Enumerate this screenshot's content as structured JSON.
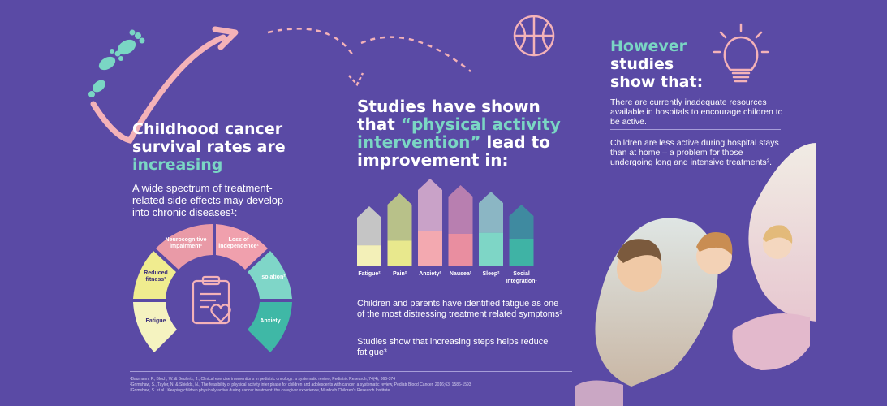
{
  "left": {
    "heading_line1": "Childhood cancer",
    "heading_line2": "survival rates are",
    "heading_accent": "increasing",
    "body": "A wide spectrum of treatment-related side effects may develop into chronic diseases¹:",
    "segments": [
      {
        "label_l1": "Neurocognitive",
        "label_l2": "impairment²",
        "color": "#e99aa7"
      },
      {
        "label_l1": "Loss of",
        "label_l2": "independence²",
        "color": "#f0a0ad"
      },
      {
        "label_l1": "Isolation²",
        "label_l2": "",
        "color": "#7fd6c8"
      },
      {
        "label_l1": "Anxiety",
        "label_l2": "",
        "color": "#3fb8a6"
      },
      {
        "label_l1": "Fatigue",
        "label_l2": "",
        "color": "#f5f3c0"
      },
      {
        "label_l1": "Reduced",
        "label_l2": "fitness²",
        "color": "#f0ec8f"
      }
    ]
  },
  "middle": {
    "heading_line1": "Studies have shown",
    "heading_line2_pre": "that ",
    "heading_accent1": "“physical activity",
    "heading_accent2": "intervention”",
    "heading_line3_post": " lead to",
    "heading_line4": "improvement in:",
    "bars": [
      {
        "label": "Fatigue²",
        "label2": "",
        "level": 0.35,
        "top": "#c5c5c5",
        "bottom": "#f3f0b8"
      },
      {
        "label": "Pain²",
        "label2": "",
        "level": 0.35,
        "top": "#b8c189",
        "bottom": "#e8e88d"
      },
      {
        "label": "Anxiety²",
        "label2": "",
        "level": 0.4,
        "top": "#c9a2c8",
        "bottom": "#f3a9b0"
      },
      {
        "label": "Nausea²",
        "label2": "",
        "level": 0.4,
        "top": "#b87fb0",
        "bottom": "#e98ea0"
      },
      {
        "label": "Sleep²",
        "label2": "",
        "level": 0.45,
        "top": "#8bb6c4",
        "bottom": "#7ed6c6"
      },
      {
        "label": "Social",
        "label2": "Integration¹",
        "level": 0.45,
        "top": "#3f8aa0",
        "bottom": "#3fb3a5"
      }
    ],
    "note1": "Children and parents have identified fatigue as one of the most distressing treatment related symptoms³",
    "note2": "Studies show that increasing steps helps reduce fatigue³"
  },
  "right": {
    "heading_line1": "However",
    "heading_line2": "studies",
    "heading_line3": "show that:",
    "point1": "There are currently inadequate resources available in hospitals to encourage children to be active.",
    "point2": "Children are less active during hospital stays than at home – a problem for those undergoing long and intensive treatments²."
  },
  "references": [
    "¹Baumann, F., Bloch, W. & Beulertz, J., Clinical exercise interventions in pediatric oncology: a systematic review, Pediatric Research, 74(4), 366-374",
    "²Grimshaw, S., Taylor, N. & Shields, N., The feasibility of physical activity inter phase for children and adolescents with cancer: a systematic review, Pediatr Blood Cancer, 2016;63: 1586-1593",
    "³Grimshaw, S. et al., Keeping children physically active during cancer treatment: the caregiver experience, Murdoch Children's Research Institute"
  ],
  "colors": {
    "background": "#5a4aa5",
    "accent": "#7ad6c4",
    "arrow": "#f4b2b8"
  }
}
